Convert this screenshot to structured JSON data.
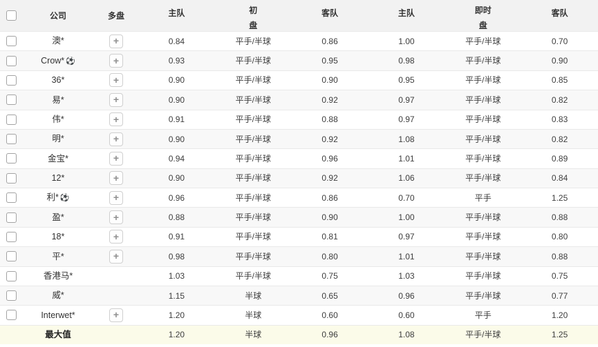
{
  "table": {
    "header": {
      "company": "公司",
      "multi": "多盘",
      "group_initial": "初",
      "group_live": "即时",
      "home": "主队",
      "handicap": "盘",
      "away": "客队"
    },
    "rows": [
      {
        "company": "澳*",
        "ball": false,
        "checkbox": true,
        "plus": true,
        "summary": false,
        "initial": {
          "home": "0.84",
          "handicap": "平手/半球",
          "away": "0.86"
        },
        "live": {
          "home": "1.00",
          "handicap": "平手/半球",
          "away": "0.70"
        }
      },
      {
        "company": "Crow*",
        "ball": true,
        "checkbox": true,
        "plus": true,
        "summary": false,
        "initial": {
          "home": "0.93",
          "handicap": "平手/半球",
          "away": "0.95"
        },
        "live": {
          "home": "0.98",
          "handicap": "平手/半球",
          "away": "0.90"
        }
      },
      {
        "company": "36*",
        "ball": false,
        "checkbox": true,
        "plus": true,
        "summary": false,
        "initial": {
          "home": "0.90",
          "handicap": "平手/半球",
          "away": "0.90"
        },
        "live": {
          "home": "0.95",
          "handicap": "平手/半球",
          "away": "0.85"
        }
      },
      {
        "company": "易*",
        "ball": false,
        "checkbox": true,
        "plus": true,
        "summary": false,
        "initial": {
          "home": "0.90",
          "handicap": "平手/半球",
          "away": "0.92"
        },
        "live": {
          "home": "0.97",
          "handicap": "平手/半球",
          "away": "0.82"
        }
      },
      {
        "company": "伟*",
        "ball": false,
        "checkbox": true,
        "plus": true,
        "summary": false,
        "initial": {
          "home": "0.91",
          "handicap": "平手/半球",
          "away": "0.88"
        },
        "live": {
          "home": "0.97",
          "handicap": "平手/半球",
          "away": "0.83"
        }
      },
      {
        "company": "明*",
        "ball": false,
        "checkbox": true,
        "plus": true,
        "summary": false,
        "initial": {
          "home": "0.90",
          "handicap": "平手/半球",
          "away": "0.92"
        },
        "live": {
          "home": "1.08",
          "handicap": "平手/半球",
          "away": "0.82"
        }
      },
      {
        "company": "金宝*",
        "ball": false,
        "checkbox": true,
        "plus": true,
        "summary": false,
        "initial": {
          "home": "0.94",
          "handicap": "平手/半球",
          "away": "0.96"
        },
        "live": {
          "home": "1.01",
          "handicap": "平手/半球",
          "away": "0.89"
        }
      },
      {
        "company": "12*",
        "ball": false,
        "checkbox": true,
        "plus": true,
        "summary": false,
        "initial": {
          "home": "0.90",
          "handicap": "平手/半球",
          "away": "0.92"
        },
        "live": {
          "home": "1.06",
          "handicap": "平手/半球",
          "away": "0.84"
        }
      },
      {
        "company": "利*",
        "ball": true,
        "checkbox": true,
        "plus": true,
        "summary": false,
        "initial": {
          "home": "0.96",
          "handicap": "平手/半球",
          "away": "0.86"
        },
        "live": {
          "home": "0.70",
          "handicap": "平手",
          "away": "1.25"
        }
      },
      {
        "company": "盈*",
        "ball": false,
        "checkbox": true,
        "plus": true,
        "summary": false,
        "initial": {
          "home": "0.88",
          "handicap": "平手/半球",
          "away": "0.90"
        },
        "live": {
          "home": "1.00",
          "handicap": "平手/半球",
          "away": "0.88"
        }
      },
      {
        "company": "18*",
        "ball": false,
        "checkbox": true,
        "plus": true,
        "summary": false,
        "initial": {
          "home": "0.91",
          "handicap": "平手/半球",
          "away": "0.81"
        },
        "live": {
          "home": "0.97",
          "handicap": "平手/半球",
          "away": "0.80"
        }
      },
      {
        "company": "平*",
        "ball": false,
        "checkbox": true,
        "plus": true,
        "summary": false,
        "initial": {
          "home": "0.98",
          "handicap": "平手/半球",
          "away": "0.80"
        },
        "live": {
          "home": "1.01",
          "handicap": "平手/半球",
          "away": "0.88"
        }
      },
      {
        "company": "香港马*",
        "ball": false,
        "checkbox": true,
        "plus": false,
        "summary": false,
        "initial": {
          "home": "1.03",
          "handicap": "平手/半球",
          "away": "0.75"
        },
        "live": {
          "home": "1.03",
          "handicap": "平手/半球",
          "away": "0.75"
        }
      },
      {
        "company": "威*",
        "ball": false,
        "checkbox": true,
        "plus": false,
        "summary": false,
        "initial": {
          "home": "1.15",
          "handicap": "半球",
          "away": "0.65"
        },
        "live": {
          "home": "0.96",
          "handicap": "平手/半球",
          "away": "0.77"
        }
      },
      {
        "company": "Interwet*",
        "ball": false,
        "checkbox": true,
        "plus": true,
        "summary": false,
        "initial": {
          "home": "1.20",
          "handicap": "半球",
          "away": "0.60"
        },
        "live": {
          "home": "0.60",
          "handicap": "平手",
          "away": "1.20"
        }
      },
      {
        "company": "最大值",
        "ball": false,
        "checkbox": false,
        "plus": false,
        "summary": true,
        "initial": {
          "home": "1.20",
          "handicap": "半球",
          "away": "0.96"
        },
        "live": {
          "home": "1.08",
          "handicap": "平手/半球",
          "away": "1.25"
        }
      }
    ]
  },
  "icons": {
    "plus": "+",
    "soccer_ball": "⚽"
  },
  "colors": {
    "header_bg": "#f2f2f2",
    "stripe_bg": "#f8f8f8",
    "summary_bg": "#fbfbe9",
    "row_border": "#e9e9e9"
  }
}
